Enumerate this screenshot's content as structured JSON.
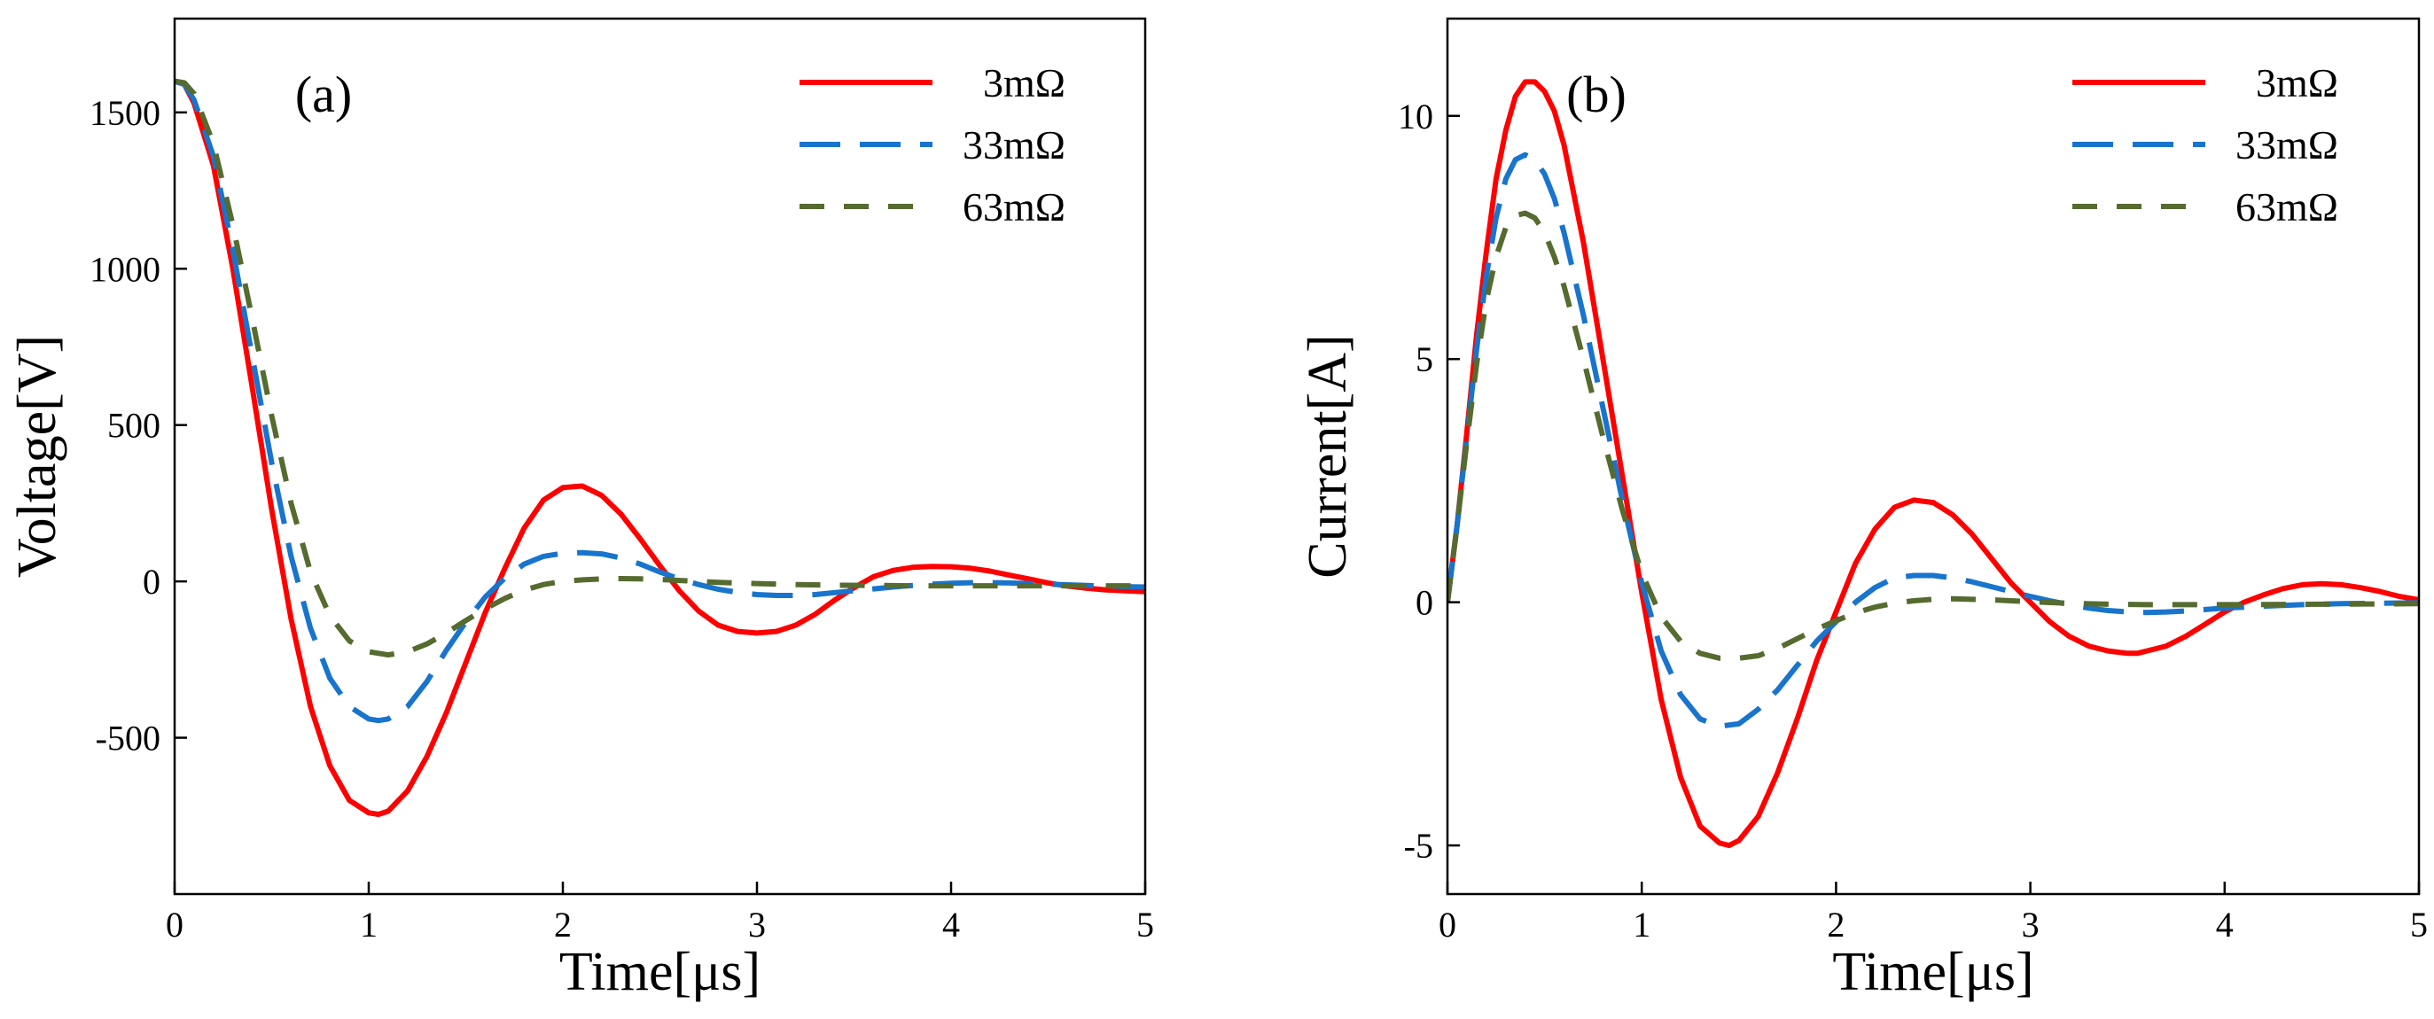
{
  "chart_data": [
    {
      "type": "line",
      "panel_label": "(a)",
      "xlabel": "Time[μs]",
      "ylabel": "Voltage[V]",
      "xlim": [
        0,
        5
      ],
      "ylim": [
        -1000,
        1800
      ],
      "xticks": [
        0,
        1,
        2,
        3,
        4,
        5
      ],
      "xtick_labels": [
        "0",
        "1",
        "2",
        "3",
        "4",
        "5"
      ],
      "yticks": [
        -500,
        0,
        500,
        1000,
        1500
      ],
      "ytick_labels": [
        "-500",
        "0",
        "500",
        "1000",
        "1500"
      ],
      "grid": false,
      "legend_position": "top-right",
      "series": [
        {
          "name": "3mΩ",
          "color": "#ff0000",
          "dash": "solid",
          "x": [
            0,
            0.05,
            0.1,
            0.2,
            0.3,
            0.4,
            0.5,
            0.6,
            0.7,
            0.8,
            0.9,
            1.0,
            1.05,
            1.1,
            1.2,
            1.3,
            1.4,
            1.5,
            1.6,
            1.7,
            1.8,
            1.9,
            2.0,
            2.1,
            2.2,
            2.3,
            2.4,
            2.5,
            2.6,
            2.7,
            2.8,
            2.9,
            3.0,
            3.1,
            3.2,
            3.3,
            3.4,
            3.5,
            3.6,
            3.7,
            3.8,
            3.9,
            4.0,
            4.1,
            4.2,
            4.3,
            4.4,
            4.5,
            4.6,
            4.7,
            4.8,
            4.9,
            5.0
          ],
          "values": [
            1600,
            1590,
            1530,
            1330,
            1000,
            620,
            230,
            -120,
            -400,
            -590,
            -700,
            -740,
            -745,
            -735,
            -670,
            -560,
            -420,
            -260,
            -100,
            40,
            170,
            260,
            300,
            305,
            275,
            215,
            135,
            50,
            -30,
            -95,
            -140,
            -160,
            -165,
            -160,
            -140,
            -105,
            -60,
            -20,
            15,
            35,
            45,
            48,
            47,
            42,
            33,
            20,
            8,
            -5,
            -15,
            -22,
            -27,
            -30,
            -33
          ]
        },
        {
          "name": "33mΩ",
          "color": "#1874cd",
          "dash": "long-dash",
          "x": [
            0,
            0.05,
            0.1,
            0.2,
            0.3,
            0.4,
            0.5,
            0.6,
            0.7,
            0.8,
            0.9,
            1.0,
            1.05,
            1.1,
            1.2,
            1.3,
            1.4,
            1.5,
            1.6,
            1.7,
            1.8,
            1.9,
            2.0,
            2.1,
            2.2,
            2.3,
            2.4,
            2.5,
            2.6,
            2.7,
            2.8,
            2.9,
            3.0,
            3.1,
            3.2,
            3.3,
            3.4,
            3.5,
            3.6,
            3.7,
            3.8,
            3.9,
            4.0,
            4.1,
            4.2,
            4.3,
            4.4,
            4.5,
            4.6,
            4.7,
            4.8,
            4.9,
            5.0
          ],
          "values": [
            1600,
            1590,
            1540,
            1360,
            1060,
            720,
            380,
            80,
            -150,
            -310,
            -400,
            -440,
            -445,
            -440,
            -400,
            -320,
            -220,
            -130,
            -50,
            10,
            55,
            80,
            90,
            92,
            88,
            75,
            55,
            30,
            8,
            -10,
            -25,
            -35,
            -42,
            -45,
            -45,
            -42,
            -36,
            -30,
            -24,
            -18,
            -13,
            -9,
            -6,
            -4,
            -4,
            -5,
            -7,
            -9,
            -11,
            -13,
            -15,
            -17,
            -18
          ]
        },
        {
          "name": "63mΩ",
          "color": "#556b2f",
          "dash": "dash",
          "x": [
            0,
            0.05,
            0.1,
            0.2,
            0.3,
            0.4,
            0.5,
            0.6,
            0.7,
            0.8,
            0.9,
            1.0,
            1.1,
            1.2,
            1.3,
            1.4,
            1.5,
            1.6,
            1.7,
            1.8,
            1.9,
            2.0,
            2.1,
            2.2,
            2.3,
            2.4,
            2.5,
            2.6,
            2.7,
            2.8,
            2.9,
            3.0,
            3.2,
            3.4,
            3.6,
            3.8,
            4.0,
            4.2,
            4.4,
            4.6,
            4.8,
            5.0
          ],
          "values": [
            1600,
            1595,
            1560,
            1400,
            1140,
            840,
            530,
            250,
            30,
            -110,
            -190,
            -225,
            -235,
            -225,
            -200,
            -165,
            -125,
            -88,
            -55,
            -28,
            -10,
            0,
            5,
            8,
            9,
            8,
            6,
            3,
            0,
            -3,
            -5,
            -7,
            -10,
            -12,
            -13,
            -14,
            -14,
            -14,
            -14,
            -14,
            -14,
            -14
          ]
        }
      ]
    },
    {
      "type": "line",
      "panel_label": "(b)",
      "xlabel": "Time[μs]",
      "ylabel": "Current[A]",
      "xlim": [
        0,
        5
      ],
      "ylim": [
        -6,
        12
      ],
      "xticks": [
        0,
        1,
        2,
        3,
        4,
        5
      ],
      "xtick_labels": [
        "0",
        "1",
        "2",
        "3",
        "4",
        "5"
      ],
      "yticks": [
        -5,
        0,
        5,
        10
      ],
      "ytick_labels": [
        "-5",
        "0",
        "5",
        "10"
      ],
      "grid": false,
      "legend_position": "top-right",
      "series": [
        {
          "name": "3mΩ",
          "color": "#ff0000",
          "dash": "solid",
          "x": [
            0,
            0.05,
            0.1,
            0.15,
            0.2,
            0.25,
            0.3,
            0.35,
            0.4,
            0.45,
            0.5,
            0.55,
            0.6,
            0.7,
            0.8,
            0.9,
            1.0,
            1.1,
            1.2,
            1.3,
            1.4,
            1.45,
            1.5,
            1.6,
            1.7,
            1.8,
            1.9,
            2.0,
            2.1,
            2.2,
            2.3,
            2.4,
            2.5,
            2.6,
            2.7,
            2.8,
            2.9,
            3.0,
            3.1,
            3.2,
            3.3,
            3.4,
            3.5,
            3.55,
            3.6,
            3.7,
            3.8,
            3.9,
            4.0,
            4.1,
            4.2,
            4.3,
            4.4,
            4.5,
            4.6,
            4.7,
            4.8,
            4.9,
            5.0
          ],
          "values": [
            0,
            1.6,
            3.5,
            5.5,
            7.2,
            8.7,
            9.7,
            10.4,
            10.7,
            10.7,
            10.5,
            10.1,
            9.4,
            7.4,
            5.0,
            2.6,
            0.2,
            -2.0,
            -3.6,
            -4.6,
            -4.95,
            -5.0,
            -4.9,
            -4.4,
            -3.5,
            -2.4,
            -1.2,
            -0.2,
            0.8,
            1.5,
            1.95,
            2.1,
            2.05,
            1.8,
            1.4,
            0.9,
            0.4,
            0.0,
            -0.4,
            -0.7,
            -0.9,
            -1.0,
            -1.05,
            -1.05,
            -1.0,
            -0.9,
            -0.7,
            -0.45,
            -0.2,
            0.0,
            0.15,
            0.28,
            0.36,
            0.38,
            0.36,
            0.3,
            0.22,
            0.12,
            0.05
          ]
        },
        {
          "name": "33mΩ",
          "color": "#1874cd",
          "dash": "long-dash",
          "x": [
            0,
            0.05,
            0.1,
            0.15,
            0.2,
            0.25,
            0.3,
            0.35,
            0.4,
            0.45,
            0.5,
            0.55,
            0.6,
            0.7,
            0.8,
            0.9,
            1.0,
            1.1,
            1.2,
            1.3,
            1.4,
            1.5,
            1.6,
            1.7,
            1.8,
            1.9,
            2.0,
            2.1,
            2.2,
            2.3,
            2.4,
            2.5,
            2.6,
            2.7,
            2.8,
            2.9,
            3.0,
            3.1,
            3.2,
            3.3,
            3.4,
            3.5,
            3.6,
            3.7,
            3.8,
            3.9,
            4.0,
            4.2,
            4.4,
            4.6,
            4.8,
            5.0
          ],
          "values": [
            0,
            1.6,
            3.4,
            5.2,
            6.7,
            7.9,
            8.7,
            9.1,
            9.2,
            9.1,
            8.8,
            8.3,
            7.6,
            5.9,
            4.0,
            2.1,
            0.4,
            -1.0,
            -1.9,
            -2.4,
            -2.55,
            -2.5,
            -2.2,
            -1.8,
            -1.3,
            -0.8,
            -0.4,
            0.0,
            0.3,
            0.5,
            0.55,
            0.55,
            0.5,
            0.42,
            0.32,
            0.22,
            0.12,
            0.03,
            -0.05,
            -0.12,
            -0.17,
            -0.2,
            -0.21,
            -0.2,
            -0.18,
            -0.15,
            -0.12,
            -0.08,
            -0.05,
            -0.03,
            -0.02,
            -0.01
          ]
        },
        {
          "name": "63mΩ",
          "color": "#556b2f",
          "dash": "dash",
          "x": [
            0,
            0.05,
            0.1,
            0.15,
            0.2,
            0.25,
            0.3,
            0.35,
            0.4,
            0.45,
            0.5,
            0.55,
            0.6,
            0.7,
            0.8,
            0.9,
            1.0,
            1.1,
            1.2,
            1.3,
            1.4,
            1.5,
            1.6,
            1.7,
            1.8,
            1.9,
            2.0,
            2.1,
            2.2,
            2.3,
            2.4,
            2.5,
            2.6,
            2.8,
            3.0,
            3.2,
            3.4,
            3.6,
            3.8,
            4.0,
            4.5,
            5.0
          ],
          "values": [
            0,
            1.6,
            3.3,
            4.9,
            6.2,
            7.1,
            7.7,
            7.95,
            8.0,
            7.9,
            7.6,
            7.1,
            6.5,
            5.0,
            3.4,
            1.9,
            0.6,
            -0.3,
            -0.8,
            -1.05,
            -1.15,
            -1.15,
            -1.1,
            -0.95,
            -0.75,
            -0.55,
            -0.38,
            -0.22,
            -0.1,
            -0.02,
            0.03,
            0.06,
            0.07,
            0.05,
            0.01,
            -0.02,
            -0.04,
            -0.05,
            -0.05,
            -0.05,
            -0.04,
            -0.03
          ]
        }
      ]
    }
  ]
}
